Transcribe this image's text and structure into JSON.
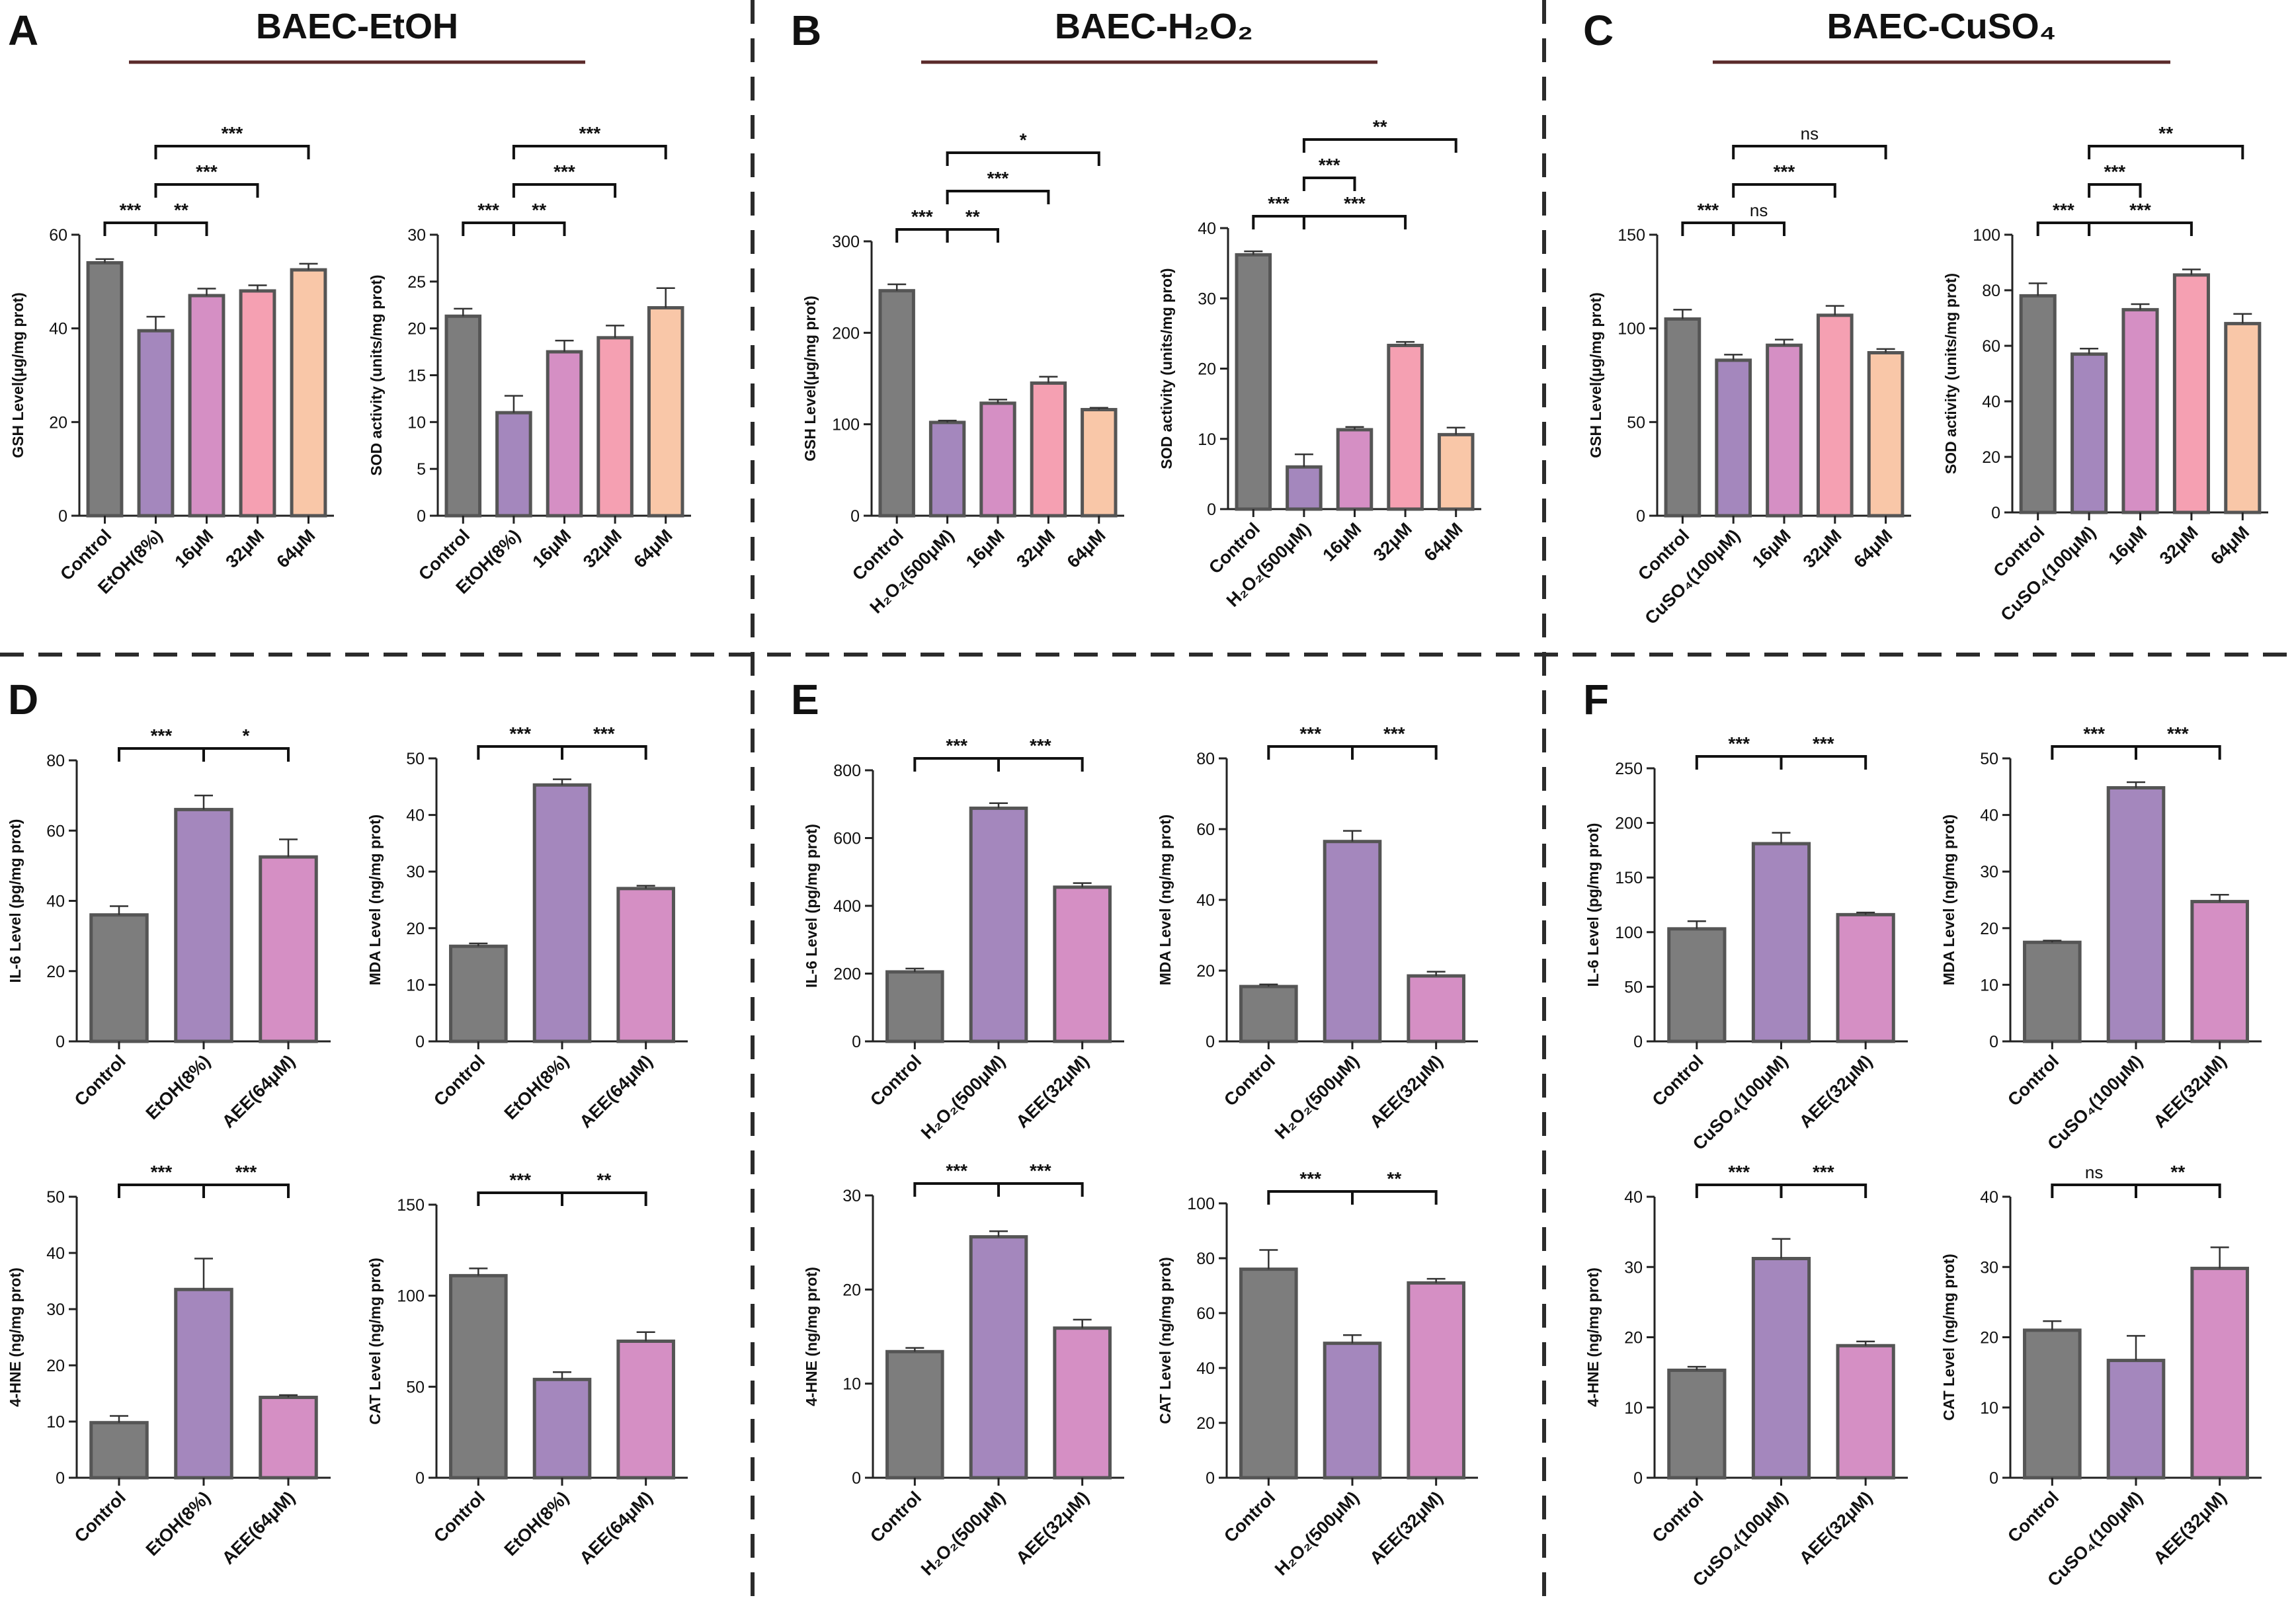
{
  "figure_panels": [
    {
      "letter": "A",
      "title": "BAEC-EtOH"
    },
    {
      "letter": "B",
      "title": "BAEC-H₂O₂"
    },
    {
      "letter": "C",
      "title": "BAEC-CuSO₄"
    },
    {
      "letter": "D",
      "title": ""
    },
    {
      "letter": "E",
      "title": ""
    },
    {
      "letter": "F",
      "title": ""
    }
  ],
  "colors": {
    "control": "#7d7d7d",
    "model": "#a487bd",
    "low": "#d58fc4",
    "mid": "#f5a0b2",
    "high": "#f9c7a8",
    "edge": "#555555",
    "divider": "#2b2b2b",
    "underline": "#5a2a2a"
  },
  "chart_data": [
    {
      "id": "A1",
      "type": "bar",
      "ylabel": "GSH Level(μg/mg prot)",
      "ylim": [
        0,
        60
      ],
      "yticks": [
        0,
        20,
        40,
        60
      ],
      "categories": [
        "Control",
        "EtOH(8%)",
        "16μM",
        "32μM",
        "64μM"
      ],
      "values": [
        54,
        39.5,
        47,
        48,
        52.5
      ],
      "errors": [
        0.8,
        3,
        1.5,
        1.2,
        1.3
      ],
      "colors": [
        "control",
        "model",
        "low",
        "mid",
        "high"
      ],
      "significance": [
        {
          "from": 0,
          "to": 1,
          "label": "***",
          "level": 1
        },
        {
          "from": 1,
          "to": 2,
          "label": "**",
          "level": 1
        },
        {
          "from": 1,
          "to": 3,
          "label": "***",
          "level": 2
        },
        {
          "from": 1,
          "to": 4,
          "label": "***",
          "level": 3
        }
      ]
    },
    {
      "id": "A2",
      "type": "bar",
      "ylabel": "SOD activity (units/mg prot)",
      "ylim": [
        0,
        30
      ],
      "yticks": [
        0,
        5,
        10,
        15,
        20,
        25,
        30
      ],
      "categories": [
        "Control",
        "EtOH(8%)",
        "16μM",
        "32μM",
        "64μM"
      ],
      "values": [
        21.3,
        11,
        17.5,
        19,
        22.2
      ],
      "errors": [
        0.8,
        1.8,
        1.2,
        1.3,
        2.1
      ],
      "colors": [
        "control",
        "model",
        "low",
        "mid",
        "high"
      ],
      "significance": [
        {
          "from": 0,
          "to": 1,
          "label": "***",
          "level": 1
        },
        {
          "from": 1,
          "to": 2,
          "label": "**",
          "level": 1
        },
        {
          "from": 1,
          "to": 3,
          "label": "***",
          "level": 2
        },
        {
          "from": 1,
          "to": 4,
          "label": "***",
          "level": 3
        }
      ]
    },
    {
      "id": "B1",
      "type": "bar",
      "ylabel": "GSH Level(μg/mg prot)",
      "ylim": [
        0,
        300
      ],
      "yticks": [
        0,
        100,
        200,
        300
      ],
      "categories": [
        "Control",
        "H₂O₂(500μM)",
        "16μM",
        "32μM",
        "64μM"
      ],
      "values": [
        246,
        102,
        123,
        145,
        116
      ],
      "errors": [
        7,
        2,
        4,
        7,
        2
      ],
      "colors": [
        "control",
        "model",
        "low",
        "mid",
        "high"
      ],
      "significance": [
        {
          "from": 0,
          "to": 1,
          "label": "***",
          "level": 1
        },
        {
          "from": 1,
          "to": 2,
          "label": "**",
          "level": 1
        },
        {
          "from": 1,
          "to": 3,
          "label": "***",
          "level": 2
        },
        {
          "from": 1,
          "to": 4,
          "label": "*",
          "level": 3
        }
      ]
    },
    {
      "id": "B2",
      "type": "bar",
      "ylabel": "SOD activity (units/mg prot)",
      "ylim": [
        0,
        40
      ],
      "yticks": [
        0,
        10,
        20,
        30,
        40
      ],
      "categories": [
        "Control",
        "H₂O₂(500μM)",
        "16μM",
        "32μM",
        "64μM"
      ],
      "values": [
        36.2,
        6,
        11.3,
        23.3,
        10.6
      ],
      "errors": [
        0.5,
        1.8,
        0.4,
        0.5,
        1
      ],
      "colors": [
        "control",
        "model",
        "low",
        "mid",
        "high"
      ],
      "significance": [
        {
          "from": 0,
          "to": 1,
          "label": "***",
          "level": 1
        },
        {
          "from": 1,
          "to": 3,
          "label": "***",
          "level": 1
        },
        {
          "from": 1,
          "to": 2,
          "label": "***",
          "level": 2
        },
        {
          "from": 1,
          "to": 4,
          "label": "**",
          "level": 3
        }
      ]
    },
    {
      "id": "C1",
      "type": "bar",
      "ylabel": "GSH Level(μg/mg prot)",
      "ylim": [
        0,
        150
      ],
      "yticks": [
        0,
        50,
        100,
        150
      ],
      "categories": [
        "Control",
        "CuSO₄(100μM)",
        "16μM",
        "32μM",
        "64μM"
      ],
      "values": [
        105,
        83,
        91,
        107,
        87
      ],
      "errors": [
        5,
        3,
        3,
        5,
        2
      ],
      "colors": [
        "control",
        "model",
        "low",
        "mid",
        "high"
      ],
      "significance": [
        {
          "from": 0,
          "to": 1,
          "label": "***",
          "level": 1
        },
        {
          "from": 1,
          "to": 2,
          "label": "ns",
          "level": 1
        },
        {
          "from": 1,
          "to": 3,
          "label": "***",
          "level": 2
        },
        {
          "from": 1,
          "to": 4,
          "label": "ns",
          "level": 3
        }
      ]
    },
    {
      "id": "C2",
      "type": "bar",
      "ylabel": "SOD activity (units/mg prot)",
      "ylim": [
        0,
        100
      ],
      "yticks": [
        0,
        20,
        40,
        60,
        80,
        100
      ],
      "categories": [
        "Control",
        "CuSO₄(100μM)",
        "16μM",
        "32μM",
        "64μM"
      ],
      "values": [
        78,
        57,
        73,
        85.5,
        68
      ],
      "errors": [
        4.5,
        2,
        2,
        2,
        3.5
      ],
      "colors": [
        "control",
        "model",
        "low",
        "mid",
        "high"
      ],
      "significance": [
        {
          "from": 0,
          "to": 1,
          "label": "***",
          "level": 1
        },
        {
          "from": 1,
          "to": 3,
          "label": "***",
          "level": 1
        },
        {
          "from": 1,
          "to": 2,
          "label": "***",
          "level": 2
        },
        {
          "from": 1,
          "to": 4,
          "label": "**",
          "level": 3
        }
      ]
    },
    {
      "id": "D1",
      "type": "bar",
      "ylabel": "IL-6 Level (pg/mg prot)",
      "ylim": [
        0,
        80
      ],
      "yticks": [
        0,
        20,
        40,
        60,
        80
      ],
      "categories": [
        "Control",
        "EtOH(8%)",
        "AEE(64μM)"
      ],
      "values": [
        36,
        66,
        52.5
      ],
      "errors": [
        2.5,
        4,
        5
      ],
      "colors": [
        "control",
        "model",
        "low"
      ],
      "significance": [
        {
          "from": 0,
          "to": 1,
          "label": "***",
          "level": 1
        },
        {
          "from": 1,
          "to": 2,
          "label": "*",
          "level": 1
        }
      ]
    },
    {
      "id": "D2",
      "type": "bar",
      "ylabel": "MDA Level (ng/mg prot)",
      "ylim": [
        0,
        50
      ],
      "yticks": [
        0,
        10,
        20,
        30,
        40,
        50
      ],
      "categories": [
        "Control",
        "EtOH(8%)",
        "AEE(64μM)"
      ],
      "values": [
        16.8,
        45.3,
        27
      ],
      "errors": [
        0.5,
        1,
        0.5
      ],
      "colors": [
        "control",
        "model",
        "low"
      ],
      "significance": [
        {
          "from": 0,
          "to": 1,
          "label": "***",
          "level": 1
        },
        {
          "from": 1,
          "to": 2,
          "label": "***",
          "level": 1
        }
      ]
    },
    {
      "id": "D3",
      "type": "bar",
      "ylabel": "4-HNE (ng/mg prot)",
      "ylim": [
        0,
        50
      ],
      "yticks": [
        0,
        10,
        20,
        30,
        40,
        50
      ],
      "categories": [
        "Control",
        "EtOH(8%)",
        "AEE(64μM)"
      ],
      "values": [
        9.8,
        33.5,
        14.3
      ],
      "errors": [
        1.2,
        5.5,
        0.4
      ],
      "colors": [
        "control",
        "model",
        "low"
      ],
      "significance": [
        {
          "from": 0,
          "to": 1,
          "label": "***",
          "level": 1
        },
        {
          "from": 1,
          "to": 2,
          "label": "***",
          "level": 1
        }
      ]
    },
    {
      "id": "D4",
      "type": "bar",
      "ylabel": "CAT Level (ng/mg prot)",
      "ylim": [
        0,
        150
      ],
      "yticks": [
        0,
        50,
        100,
        150
      ],
      "categories": [
        "Control",
        "EtOH(8%)",
        "AEE(64μM)"
      ],
      "values": [
        111,
        54,
        75
      ],
      "errors": [
        4,
        4,
        5
      ],
      "colors": [
        "control",
        "model",
        "low"
      ],
      "significance": [
        {
          "from": 0,
          "to": 1,
          "label": "***",
          "level": 1
        },
        {
          "from": 1,
          "to": 2,
          "label": "**",
          "level": 1
        }
      ]
    },
    {
      "id": "E1",
      "type": "bar",
      "ylabel": "IL-6 Level (pg/mg prot)",
      "ylim": [
        0,
        800
      ],
      "yticks": [
        0,
        200,
        400,
        600,
        800
      ],
      "categories": [
        "Control",
        "H₂O₂(500μM)",
        "AEE(32μM)"
      ],
      "values": [
        205,
        688,
        455
      ],
      "errors": [
        10,
        15,
        12
      ],
      "colors": [
        "control",
        "model",
        "low"
      ],
      "significance": [
        {
          "from": 0,
          "to": 1,
          "label": "***",
          "level": 1
        },
        {
          "from": 1,
          "to": 2,
          "label": "***",
          "level": 1
        }
      ]
    },
    {
      "id": "E2",
      "type": "bar",
      "ylabel": "MDA Level (ng/mg prot)",
      "ylim": [
        0,
        80
      ],
      "yticks": [
        0,
        20,
        40,
        60,
        80
      ],
      "categories": [
        "Control",
        "H₂O₂(500μM)",
        "AEE(32μM)"
      ],
      "values": [
        15.5,
        56.5,
        18.5
      ],
      "errors": [
        0.6,
        3,
        1.2
      ],
      "colors": [
        "control",
        "model",
        "low"
      ],
      "significance": [
        {
          "from": 0,
          "to": 1,
          "label": "***",
          "level": 1
        },
        {
          "from": 1,
          "to": 2,
          "label": "***",
          "level": 1
        }
      ]
    },
    {
      "id": "E3",
      "type": "bar",
      "ylabel": "4-HNE (ng/mg prot)",
      "ylim": [
        0,
        30
      ],
      "yticks": [
        0,
        10,
        20,
        30
      ],
      "categories": [
        "Control",
        "H₂O₂(500μM)",
        "AEE(32μM)"
      ],
      "values": [
        13.4,
        25.6,
        15.9
      ],
      "errors": [
        0.4,
        0.6,
        0.9
      ],
      "colors": [
        "control",
        "model",
        "low"
      ],
      "significance": [
        {
          "from": 0,
          "to": 1,
          "label": "***",
          "level": 1
        },
        {
          "from": 1,
          "to": 2,
          "label": "***",
          "level": 1
        }
      ]
    },
    {
      "id": "E4",
      "type": "bar",
      "ylabel": "CAT Level (ng/mg prot)",
      "ylim": [
        0,
        100
      ],
      "yticks": [
        0,
        20,
        40,
        60,
        80,
        100
      ],
      "categories": [
        "Control",
        "H₂O₂(500μM)",
        "AEE(32μM)"
      ],
      "values": [
        76,
        49,
        71
      ],
      "errors": [
        7,
        3,
        1.5
      ],
      "colors": [
        "control",
        "model",
        "low"
      ],
      "significance": [
        {
          "from": 0,
          "to": 1,
          "label": "***",
          "level": 1
        },
        {
          "from": 1,
          "to": 2,
          "label": "**",
          "level": 1
        }
      ]
    },
    {
      "id": "F1",
      "type": "bar",
      "ylabel": "IL-6 Level (pg/mg prot)",
      "ylim": [
        0,
        250
      ],
      "yticks": [
        0,
        50,
        100,
        150,
        200,
        250
      ],
      "categories": [
        "Control",
        "CuSO₄(100μM)",
        "AEE(32μM)"
      ],
      "values": [
        103,
        181,
        116
      ],
      "errors": [
        7,
        10,
        2
      ],
      "colors": [
        "control",
        "model",
        "low"
      ],
      "significance": [
        {
          "from": 0,
          "to": 1,
          "label": "***",
          "level": 1
        },
        {
          "from": 1,
          "to": 2,
          "label": "***",
          "level": 1
        }
      ]
    },
    {
      "id": "F2",
      "type": "bar",
      "ylabel": "MDA Level (ng/mg prot)",
      "ylim": [
        0,
        50
      ],
      "yticks": [
        0,
        10,
        20,
        30,
        40,
        50
      ],
      "categories": [
        "Control",
        "CuSO₄(100μM)",
        "AEE(32μM)"
      ],
      "values": [
        17.5,
        44.8,
        24.7
      ],
      "errors": [
        0.3,
        1,
        1.2
      ],
      "colors": [
        "control",
        "model",
        "low"
      ],
      "significance": [
        {
          "from": 0,
          "to": 1,
          "label": "***",
          "level": 1
        },
        {
          "from": 1,
          "to": 2,
          "label": "***",
          "level": 1
        }
      ]
    },
    {
      "id": "F3",
      "type": "bar",
      "ylabel": "4-HNE (ng/mg prot)",
      "ylim": [
        0,
        40
      ],
      "yticks": [
        0,
        10,
        20,
        30,
        40
      ],
      "categories": [
        "Control",
        "CuSO₄(100μM)",
        "AEE(32μM)"
      ],
      "values": [
        15.3,
        31.2,
        18.8
      ],
      "errors": [
        0.5,
        2.8,
        0.6
      ],
      "colors": [
        "control",
        "model",
        "low"
      ],
      "significance": [
        {
          "from": 0,
          "to": 1,
          "label": "***",
          "level": 1
        },
        {
          "from": 1,
          "to": 2,
          "label": "***",
          "level": 1
        }
      ]
    },
    {
      "id": "F4",
      "type": "bar",
      "ylabel": "CAT Level (ng/mg prot)",
      "ylim": [
        0,
        40
      ],
      "yticks": [
        0,
        10,
        20,
        30,
        40
      ],
      "categories": [
        "Control",
        "CuSO₄(100μM)",
        "AEE(32μM)"
      ],
      "values": [
        21,
        16.7,
        29.8
      ],
      "errors": [
        1.3,
        3.5,
        3
      ],
      "colors": [
        "control",
        "model",
        "low"
      ],
      "significance": [
        {
          "from": 0,
          "to": 1,
          "label": "ns",
          "level": 1
        },
        {
          "from": 1,
          "to": 2,
          "label": "**",
          "level": 1
        }
      ]
    }
  ]
}
